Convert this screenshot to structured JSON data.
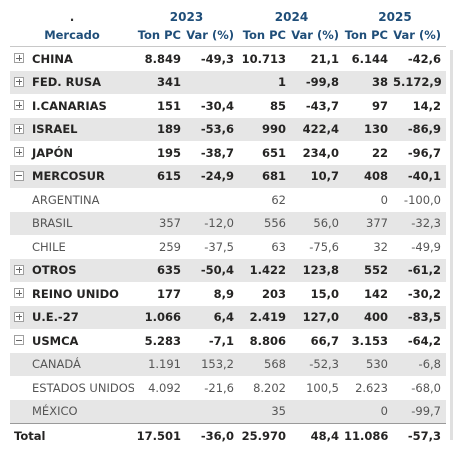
{
  "header": {
    "dot": ".",
    "years": [
      "2023",
      "2024",
      "2025"
    ],
    "mercado_label": "Mercado",
    "ton_label": "Ton PC",
    "var_label": "Var (%)"
  },
  "rows": [
    {
      "name": "CHINA",
      "v": [
        "8.849",
        "-49,3",
        "10.713",
        "21,1",
        "6.144",
        "-42,6"
      ]
    },
    {
      "name": "FED. RUSA",
      "v": [
        "341",
        "",
        "1",
        "-99,8",
        "38",
        "5.172,9"
      ]
    },
    {
      "name": "I.CANARIAS",
      "v": [
        "151",
        "-30,4",
        "85",
        "-43,7",
        "97",
        "14,2"
      ]
    },
    {
      "name": "ISRAEL",
      "v": [
        "189",
        "-53,6",
        "990",
        "422,4",
        "130",
        "-86,9"
      ]
    },
    {
      "name": "JAPÓN",
      "v": [
        "195",
        "-38,7",
        "651",
        "234,0",
        "22",
        "-96,7"
      ]
    },
    {
      "name": "MERCOSUR",
      "v": [
        "615",
        "-24,9",
        "681",
        "10,7",
        "408",
        "-40,1"
      ]
    },
    {
      "name": "ARGENTINA",
      "v": [
        "",
        "",
        "62",
        "",
        "0",
        "-100,0"
      ]
    },
    {
      "name": "BRASIL",
      "v": [
        "357",
        "-12,0",
        "556",
        "56,0",
        "377",
        "-32,3"
      ]
    },
    {
      "name": "CHILE",
      "v": [
        "259",
        "-37,5",
        "63",
        "-75,6",
        "32",
        "-49,9"
      ]
    },
    {
      "name": "OTROS",
      "v": [
        "635",
        "-50,4",
        "1.422",
        "123,8",
        "552",
        "-61,2"
      ]
    },
    {
      "name": "REINO UNIDO",
      "v": [
        "177",
        "8,9",
        "203",
        "15,0",
        "142",
        "-30,2"
      ]
    },
    {
      "name": "U.E.-27",
      "v": [
        "1.066",
        "6,4",
        "2.419",
        "127,0",
        "400",
        "-83,5"
      ]
    },
    {
      "name": "USMCA",
      "v": [
        "5.283",
        "-7,1",
        "8.806",
        "66,7",
        "3.153",
        "-64,2"
      ]
    },
    {
      "name": "CANADÁ",
      "v": [
        "1.191",
        "153,2",
        "568",
        "-52,3",
        "530",
        "-6,8"
      ]
    },
    {
      "name": "ESTADOS UNIDOS",
      "v": [
        "4.092",
        "-21,6",
        "8.202",
        "100,5",
        "2.623",
        "-68,0"
      ]
    },
    {
      "name": "MÉXICO",
      "v": [
        "",
        "",
        "35",
        "",
        "0",
        "-99,7"
      ]
    }
  ],
  "total": {
    "name": "Total",
    "v": [
      "17.501",
      "-36,0",
      "25.970",
      "48,4",
      "11.086",
      "-57,3"
    ]
  }
}
